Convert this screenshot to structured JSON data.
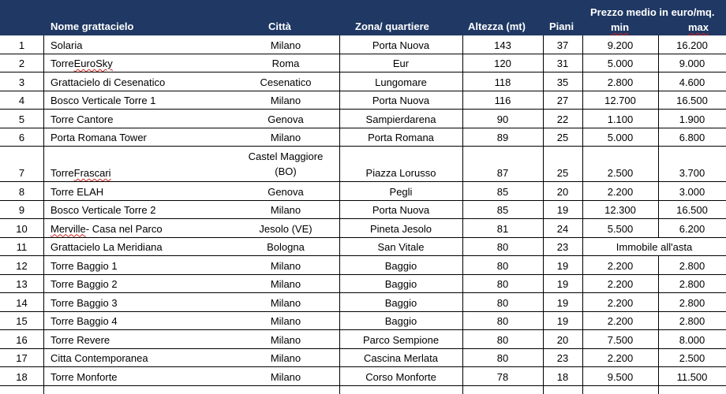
{
  "headers": {
    "name": "Nome grattacielo",
    "city": "Città",
    "zone": "Zona/ quartiere",
    "height": "Altezza (mt)",
    "floors": "Piani",
    "price_group": "Prezzo medio in euro/mq.",
    "min": "min",
    "max": "max"
  },
  "rows": [
    {
      "num": "1",
      "name": "Solaria",
      "city": "Milano",
      "zone": "Porta Nuova",
      "height": "143",
      "floors": "37",
      "min": "9.200",
      "max": "16.200"
    },
    {
      "num": "2",
      "name": "Torre EuroSky",
      "city": "Roma",
      "zone": "Eur",
      "height": "120",
      "floors": "31",
      "min": "5.000",
      "max": "9.000"
    },
    {
      "num": "3",
      "name": "Grattacielo di Cesenatico",
      "city": "Cesenatico",
      "zone": "Lungomare",
      "height": "118",
      "floors": "35",
      "min": "2.800",
      "max": "4.600"
    },
    {
      "num": "4",
      "name": "Bosco Verticale Torre 1",
      "city": "Milano",
      "zone": "Porta Nuova",
      "height": "116",
      "floors": "27",
      "min": "12.700",
      "max": "16.500"
    },
    {
      "num": "5",
      "name": "Torre Cantore",
      "city": "Genova",
      "zone": "Sampierdarena",
      "height": "90",
      "floors": "22",
      "min": "1.100",
      "max": "1.900"
    },
    {
      "num": "6",
      "name": "Porta Romana Tower",
      "city": "Milano",
      "zone": "Porta Romana",
      "height": "89",
      "floors": "25",
      "min": "5.000",
      "max": "6.800"
    },
    {
      "num": "7",
      "name": "Torre Frascari",
      "city_line1": "Castel Maggiore",
      "city_line2": "(BO)",
      "zone": "Piazza Lorusso",
      "height": "87",
      "floors": "25",
      "min": "2.500",
      "max": "3.700"
    },
    {
      "num": "8",
      "name": "Torre ELAH",
      "city": "Genova",
      "zone": "Pegli",
      "height": "85",
      "floors": "20",
      "min": "2.200",
      "max": "3.000"
    },
    {
      "num": "9",
      "name": "Bosco Verticale Torre 2",
      "city": "Milano",
      "zone": "Porta Nuova",
      "height": "85",
      "floors": "19",
      "min": "12.300",
      "max": "16.500"
    },
    {
      "num": "10",
      "name": "Merville - Casa nel Parco",
      "city": "Jesolo (VE)",
      "zone": "Pineta Jesolo",
      "height": "81",
      "floors": "24",
      "min": "5.500",
      "max": "6.200"
    },
    {
      "num": "11",
      "name": "Grattacielo La Meridiana",
      "city": "Bologna",
      "zone": "San Vitale",
      "height": "80",
      "floors": "23",
      "price_note": "Immobile all'asta"
    },
    {
      "num": "12",
      "name": "Torre Baggio 1",
      "city": "Milano",
      "zone": "Baggio",
      "height": "80",
      "floors": "19",
      "min": "2.200",
      "max": "2.800"
    },
    {
      "num": "13",
      "name": "Torre Baggio 2",
      "city": "Milano",
      "zone": "Baggio",
      "height": "80",
      "floors": "19",
      "min": "2.200",
      "max": "2.800"
    },
    {
      "num": "14",
      "name": "Torre Baggio 3",
      "city": "Milano",
      "zone": "Baggio",
      "height": "80",
      "floors": "19",
      "min": "2.200",
      "max": "2.800"
    },
    {
      "num": "15",
      "name": "Torre Baggio 4",
      "city": "Milano",
      "zone": "Baggio",
      "height": "80",
      "floors": "19",
      "min": "2.200",
      "max": "2.800"
    },
    {
      "num": "16",
      "name": "Torre Revere",
      "city": "Milano",
      "zone": "Parco Sempione",
      "height": "80",
      "floors": "20",
      "min": "7.500",
      "max": "8.000"
    },
    {
      "num": "17",
      "name": "Citta Contemporanea",
      "city": "Milano",
      "zone": "Cascina Merlata",
      "height": "80",
      "floors": "23",
      "min": "2.200",
      "max": "2.500"
    },
    {
      "num": "18",
      "name": "Torre Monforte",
      "city": "Milano",
      "zone": "Corso Monforte",
      "height": "78",
      "floors": "18",
      "min": "9.500",
      "max": "11.500"
    }
  ]
}
